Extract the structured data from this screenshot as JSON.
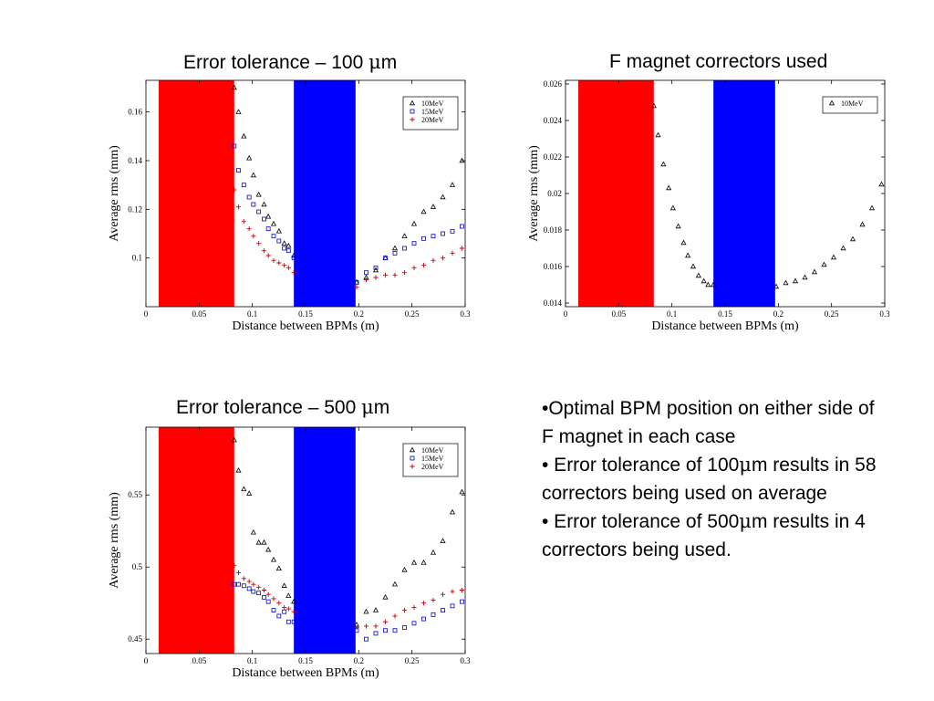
{
  "titles": {
    "top_left": "Error tolerance – 100 ",
    "top_right": "F magnet correctors used",
    "bottom_left": "Error tolerance – 500 ",
    "unit_mu": "μ",
    "unit_m": "m"
  },
  "bullets": {
    "b1": "•Optimal BPM position on either side of F magnet in each case",
    "b2_pre": "• Error tolerance of 100",
    "b2_post": "m results in 58 correctors being used on average",
    "b3_pre": "• Error tolerance of 500",
    "b3_post": "m results in 4 correctors being used.",
    "mu": "μ"
  },
  "colors": {
    "red_band": "#ff0000",
    "blue_band": "#0000ff",
    "series_10": "#000000",
    "series_15": "#0000cc",
    "series_20": "#cc0000"
  },
  "chart_data": [
    {
      "type": "scatter",
      "xlabel": "Distance between BPMs (m)",
      "ylabel": "Average rms (mm)",
      "xlim": [
        0,
        0.3
      ],
      "ylim": [
        0.08,
        0.173
      ],
      "xticks": [
        0,
        0.05,
        0.1,
        0.15,
        0.2,
        0.25,
        0.3
      ],
      "xtick_labels": [
        "0",
        "0.05",
        "0.1",
        "0.15",
        "0.2",
        "0.25",
        "0.3"
      ],
      "yticks": [
        0.1,
        0.12,
        0.14,
        0.16
      ],
      "ytick_labels": [
        "0.1",
        "0.12",
        "0.14",
        "0.16"
      ],
      "bands": [
        {
          "color": "red",
          "x": [
            0.012,
            0.083
          ]
        },
        {
          "color": "blue",
          "x": [
            0.139,
            0.197
          ]
        }
      ],
      "legend_position": "top-right",
      "series": [
        {
          "name": "10MeV",
          "marker": "triangle",
          "color": "#000000",
          "x": [
            0.083,
            0.087,
            0.092,
            0.097,
            0.101,
            0.106,
            0.111,
            0.115,
            0.12,
            0.125,
            0.13,
            0.134,
            0.139,
            0.198,
            0.207,
            0.216,
            0.225,
            0.234,
            0.243,
            0.252,
            0.261,
            0.27,
            0.279,
            0.288,
            0.297
          ],
          "y": [
            0.17,
            0.16,
            0.15,
            0.141,
            0.134,
            0.126,
            0.122,
            0.117,
            0.114,
            0.111,
            0.106,
            0.105,
            0.101,
            0.09,
            0.092,
            0.095,
            0.1,
            0.104,
            0.109,
            0.114,
            0.119,
            0.121,
            0.125,
            0.13,
            0.14
          ]
        },
        {
          "name": "15MeV",
          "marker": "square",
          "color": "#0000cc",
          "x": [
            0.083,
            0.087,
            0.092,
            0.097,
            0.101,
            0.106,
            0.111,
            0.115,
            0.12,
            0.125,
            0.13,
            0.134,
            0.139,
            0.198,
            0.207,
            0.216,
            0.225,
            0.234,
            0.243,
            0.252,
            0.261,
            0.27,
            0.279,
            0.288,
            0.297
          ],
          "y": [
            0.146,
            0.136,
            0.13,
            0.125,
            0.122,
            0.119,
            0.116,
            0.112,
            0.109,
            0.107,
            0.104,
            0.103,
            0.1,
            0.09,
            0.094,
            0.096,
            0.1,
            0.102,
            0.104,
            0.106,
            0.108,
            0.109,
            0.11,
            0.111,
            0.113
          ]
        },
        {
          "name": "20MeV",
          "marker": "plus",
          "color": "#cc0000",
          "x": [
            0.083,
            0.087,
            0.092,
            0.097,
            0.101,
            0.106,
            0.111,
            0.115,
            0.12,
            0.125,
            0.13,
            0.134,
            0.139,
            0.198,
            0.207,
            0.216,
            0.225,
            0.234,
            0.243,
            0.252,
            0.261,
            0.27,
            0.279,
            0.288,
            0.297
          ],
          "y": [
            0.128,
            0.121,
            0.115,
            0.112,
            0.109,
            0.106,
            0.103,
            0.101,
            0.099,
            0.098,
            0.097,
            0.096,
            0.094,
            0.088,
            0.091,
            0.092,
            0.093,
            0.093,
            0.094,
            0.096,
            0.097,
            0.099,
            0.1,
            0.102,
            0.104
          ]
        }
      ]
    },
    {
      "type": "scatter",
      "xlabel": "Distance between BPMs (m)",
      "ylabel": "Average rms (mm)",
      "xlim": [
        0,
        0.3
      ],
      "ylim": [
        0.0138,
        0.0262
      ],
      "xticks": [
        0,
        0.05,
        0.1,
        0.15,
        0.2,
        0.25,
        0.3
      ],
      "xtick_labels": [
        "0",
        "0.05",
        "0.1",
        "0.15",
        "0.2",
        "0.25",
        "0.3"
      ],
      "yticks": [
        0.014,
        0.016,
        0.018,
        0.02,
        0.022,
        0.024,
        0.026
      ],
      "ytick_labels": [
        "0.014",
        "0.016",
        "0.018",
        "0.02",
        "0.022",
        "0.024",
        "0.026"
      ],
      "bands": [
        {
          "color": "red",
          "x": [
            0.012,
            0.083
          ]
        },
        {
          "color": "blue",
          "x": [
            0.139,
            0.197
          ]
        }
      ],
      "legend_position": "top-right",
      "series": [
        {
          "name": "10MeV",
          "marker": "triangle",
          "color": "#000000",
          "x": [
            0.083,
            0.087,
            0.092,
            0.097,
            0.101,
            0.106,
            0.111,
            0.115,
            0.12,
            0.125,
            0.13,
            0.134,
            0.139,
            0.198,
            0.207,
            0.216,
            0.225,
            0.234,
            0.243,
            0.252,
            0.261,
            0.27,
            0.279,
            0.288,
            0.297
          ],
          "y": [
            0.0248,
            0.0232,
            0.0216,
            0.0203,
            0.0192,
            0.0182,
            0.0173,
            0.0166,
            0.016,
            0.0155,
            0.0152,
            0.015,
            0.015,
            0.0149,
            0.0151,
            0.0152,
            0.0154,
            0.0157,
            0.0161,
            0.0165,
            0.017,
            0.0175,
            0.0183,
            0.0192,
            0.0205
          ]
        }
      ]
    },
    {
      "type": "scatter",
      "xlabel": "Distance between BPMs (m)",
      "ylabel": "Average rms (mm)",
      "xlim": [
        0,
        0.3
      ],
      "ylim": [
        0.44,
        0.597
      ],
      "xticks": [
        0,
        0.05,
        0.1,
        0.15,
        0.2,
        0.25,
        0.3
      ],
      "xtick_labels": [
        "0",
        "0.05",
        "0.1",
        "0.15",
        "0.2",
        "0.25",
        "0.3"
      ],
      "yticks": [
        0.45,
        0.5,
        0.55
      ],
      "ytick_labels": [
        "0.45",
        "0.5",
        "0.55"
      ],
      "bands": [
        {
          "color": "red",
          "x": [
            0.012,
            0.083
          ]
        },
        {
          "color": "blue",
          "x": [
            0.139,
            0.197
          ]
        }
      ],
      "legend_position": "top-right",
      "series": [
        {
          "name": "10MeV",
          "marker": "triangle",
          "color": "#000000",
          "x": [
            0.083,
            0.087,
            0.092,
            0.097,
            0.101,
            0.106,
            0.111,
            0.115,
            0.12,
            0.125,
            0.13,
            0.134,
            0.139,
            0.198,
            0.207,
            0.216,
            0.225,
            0.234,
            0.243,
            0.252,
            0.261,
            0.27,
            0.279,
            0.288,
            0.297
          ],
          "y": [
            0.588,
            0.567,
            0.554,
            0.551,
            0.524,
            0.517,
            0.517,
            0.512,
            0.505,
            0.499,
            0.487,
            0.48,
            0.476,
            0.46,
            0.469,
            0.47,
            0.479,
            0.488,
            0.498,
            0.503,
            0.503,
            0.51,
            0.518,
            0.538,
            0.552
          ]
        },
        {
          "name": "15MeV",
          "marker": "square",
          "color": "#0000cc",
          "x": [
            0.083,
            0.087,
            0.092,
            0.097,
            0.101,
            0.106,
            0.111,
            0.115,
            0.12,
            0.125,
            0.13,
            0.134,
            0.139,
            0.198,
            0.207,
            0.216,
            0.225,
            0.234,
            0.243,
            0.252,
            0.261,
            0.27,
            0.279,
            0.288,
            0.297
          ],
          "y": [
            0.488,
            0.488,
            0.487,
            0.485,
            0.483,
            0.482,
            0.479,
            0.476,
            0.47,
            0.466,
            0.469,
            0.462,
            0.462,
            0.456,
            0.45,
            0.454,
            0.456,
            0.456,
            0.458,
            0.461,
            0.464,
            0.467,
            0.47,
            0.473,
            0.476
          ]
        },
        {
          "name": "20MeV",
          "marker": "plus",
          "color": "#cc0000",
          "x": [
            0.083,
            0.087,
            0.092,
            0.097,
            0.101,
            0.106,
            0.111,
            0.115,
            0.12,
            0.125,
            0.13,
            0.134,
            0.139,
            0.198,
            0.207,
            0.216,
            0.225,
            0.234,
            0.243,
            0.252,
            0.261,
            0.27,
            0.279,
            0.288,
            0.297
          ],
          "y": [
            0.501,
            0.496,
            0.492,
            0.49,
            0.488,
            0.486,
            0.484,
            0.481,
            0.478,
            0.475,
            0.472,
            0.471,
            0.469,
            0.458,
            0.459,
            0.459,
            0.462,
            0.466,
            0.47,
            0.472,
            0.475,
            0.477,
            0.481,
            0.483,
            0.484
          ]
        }
      ]
    }
  ]
}
